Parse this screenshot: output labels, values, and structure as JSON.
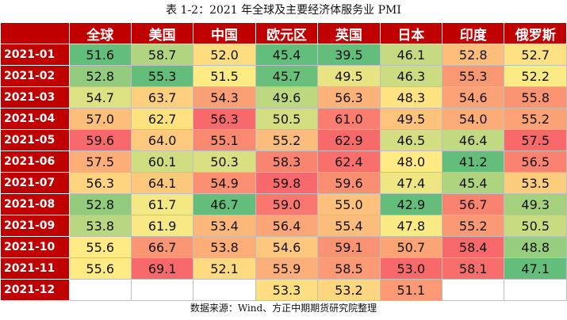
{
  "caption": "表 1-2：2021 年全球及主要经济体服务业 PMI",
  "source": "数据来源：Wind、方正中期期货研究院整理",
  "columns": [
    "全球",
    "美国",
    "中国",
    "欧元区",
    "英国",
    "日本",
    "印度",
    "俄罗斯"
  ],
  "colors": {
    "header_bg": "#c00000",
    "header_text": "#ffffff",
    "low": "#63be7b",
    "mid": "#ffeb84",
    "high": "#f8696b"
  },
  "rows": [
    {
      "month": "2021-01",
      "values": [
        "51.6",
        "58.7",
        "52.0",
        "45.4",
        "39.5",
        "46.1",
        "52.8",
        "52.7"
      ]
    },
    {
      "month": "2021-02",
      "values": [
        "52.8",
        "55.3",
        "51.5",
        "45.7",
        "49.5",
        "46.3",
        "55.3",
        "52.2"
      ]
    },
    {
      "month": "2021-03",
      "values": [
        "54.7",
        "63.7",
        "54.3",
        "49.6",
        "56.3",
        "48.3",
        "54.6",
        "55.8"
      ]
    },
    {
      "month": "2021-04",
      "values": [
        "57.0",
        "62.7",
        "56.3",
        "50.5",
        "61.0",
        "49.5",
        "54.0",
        "55.2"
      ]
    },
    {
      "month": "2021-05",
      "values": [
        "59.6",
        "64.0",
        "55.1",
        "55.2",
        "62.9",
        "46.5",
        "46.4",
        "57.5"
      ]
    },
    {
      "month": "2021-06",
      "values": [
        "57.5",
        "60.1",
        "50.3",
        "58.3",
        "62.4",
        "48.0",
        "41.2",
        "56.5"
      ]
    },
    {
      "month": "2021-07",
      "values": [
        "56.3",
        "64.1",
        "54.9",
        "59.8",
        "59.6",
        "47.4",
        "45.4",
        "53.5"
      ]
    },
    {
      "month": "2021-08",
      "values": [
        "52.8",
        "61.7",
        "46.7",
        "59.0",
        "55.0",
        "42.9",
        "56.7",
        "49.3"
      ]
    },
    {
      "month": "2021-09",
      "values": [
        "53.8",
        "61.9",
        "53.4",
        "56.4",
        "55.4",
        "47.8",
        "55.2",
        "50.5"
      ]
    },
    {
      "month": "2021-10",
      "values": [
        "55.6",
        "66.7",
        "53.8",
        "54.6",
        "59.1",
        "50.7",
        "58.4",
        "48.8"
      ]
    },
    {
      "month": "2021-11",
      "values": [
        "55.6",
        "69.1",
        "52.1",
        "55.9",
        "58.5",
        "53.0",
        "58.1",
        "47.1"
      ]
    },
    {
      "month": "2021-12",
      "values": [
        "",
        "",
        "",
        "53.3",
        "53.2",
        "51.1",
        "",
        ""
      ]
    }
  ]
}
